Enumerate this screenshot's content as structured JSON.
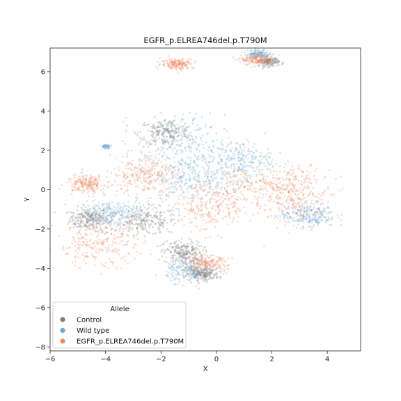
{
  "chart_data": {
    "type": "scatter",
    "title": "EGFR_p.ELREA746del.p.T790M",
    "xlabel": "X",
    "ylabel": "Y",
    "xlim": [
      -6,
      5.2
    ],
    "ylim": [
      -8.2,
      7.2
    ],
    "xticks": [
      -6,
      -4,
      -2,
      0,
      2,
      4
    ],
    "yticks": [
      -8,
      -6,
      -4,
      -2,
      0,
      2,
      4,
      6
    ],
    "grid": false,
    "legend": {
      "title": "Allele",
      "placement": "lower-left",
      "entries": [
        {
          "name": "Control",
          "color": "#7f7f7f"
        },
        {
          "name": "Wild type",
          "color": "#6aa9d2"
        },
        {
          "name": "EGFR_p.ELREA746del.p.T790M",
          "color": "#ef8a62"
        }
      ]
    },
    "series": [
      {
        "name": "Control",
        "color": "#7f7f7f",
        "clusters": [
          {
            "cx": -4.6,
            "cy": -1.5,
            "sx": 0.35,
            "sy": 0.3
          },
          {
            "cx": -2.6,
            "cy": -1.6,
            "sx": 0.6,
            "sy": 0.35
          },
          {
            "cx": -1.8,
            "cy": 2.9,
            "sx": 0.5,
            "sy": 0.35
          },
          {
            "cx": -1.2,
            "cy": -3.2,
            "sx": 0.35,
            "sy": 0.3
          },
          {
            "cx": -0.5,
            "cy": -4.3,
            "sx": 0.3,
            "sy": 0.15
          },
          {
            "cx": 1.9,
            "cy": 6.5,
            "sx": 0.18,
            "sy": 0.12
          }
        ]
      },
      {
        "name": "Wild type",
        "color": "#6aa9d2",
        "clusters": [
          {
            "cx": -3.8,
            "cy": -1.2,
            "sx": 0.55,
            "sy": 0.35
          },
          {
            "cx": -1.3,
            "cy": 2.0,
            "sx": 0.8,
            "sy": 0.9
          },
          {
            "cx": -0.8,
            "cy": 0.5,
            "sx": 0.9,
            "sy": 0.6
          },
          {
            "cx": 0.8,
            "cy": 1.5,
            "sx": 0.6,
            "sy": 0.5
          },
          {
            "cx": 3.3,
            "cy": -1.3,
            "sx": 0.5,
            "sy": 0.3
          },
          {
            "cx": 1.5,
            "cy": 6.9,
            "sx": 0.2,
            "sy": 0.12
          },
          {
            "cx": -4.0,
            "cy": 2.2,
            "sx": 0.08,
            "sy": 0.06
          },
          {
            "cx": -0.9,
            "cy": -4.1,
            "sx": 0.45,
            "sy": 0.3
          }
        ]
      },
      {
        "name": "EGFR_p.ELREA746del.p.T790M",
        "color": "#ef8a62",
        "clusters": [
          {
            "cx": -4.7,
            "cy": 0.3,
            "sx": 0.35,
            "sy": 0.22
          },
          {
            "cx": -0.2,
            "cy": -0.9,
            "sx": 0.75,
            "sy": 0.65
          },
          {
            "cx": 1.6,
            "cy": 0.1,
            "sx": 0.9,
            "sy": 0.6
          },
          {
            "cx": 3.0,
            "cy": -0.3,
            "sx": 0.6,
            "sy": 0.7
          },
          {
            "cx": -2.6,
            "cy": 0.8,
            "sx": 0.55,
            "sy": 0.5
          },
          {
            "cx": -0.4,
            "cy": -3.8,
            "sx": 0.4,
            "sy": 0.22
          },
          {
            "cx": -1.4,
            "cy": 6.4,
            "sx": 0.3,
            "sy": 0.14
          },
          {
            "cx": 1.5,
            "cy": 6.6,
            "sx": 0.3,
            "sy": 0.14
          },
          {
            "cx": -4.2,
            "cy": -2.8,
            "sx": 0.8,
            "sy": 0.6
          }
        ]
      }
    ]
  }
}
